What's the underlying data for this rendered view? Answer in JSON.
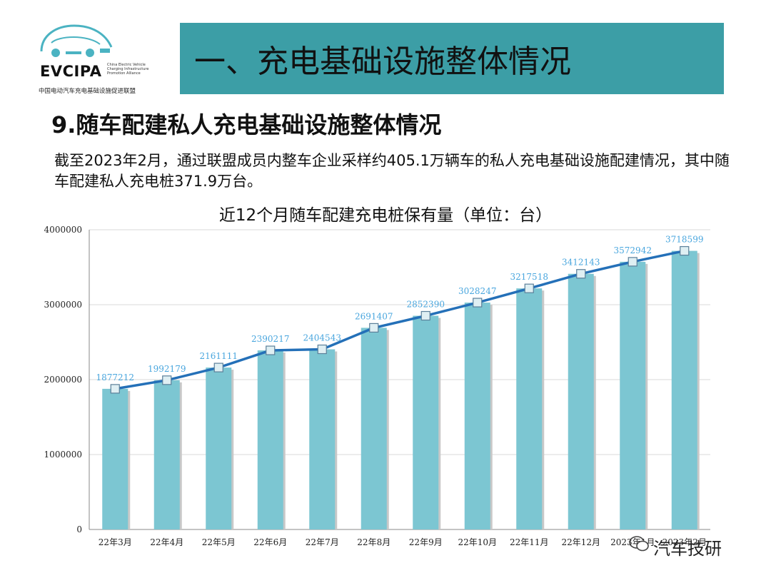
{
  "logo": {
    "brand": "EVCIPA",
    "subtitle_lines": [
      "China Electric Vehicle",
      "Charging Infrastructure",
      "Promotion Alliance"
    ],
    "cn_name": "中国电动汽车充电基础设施促进联盟"
  },
  "header": {
    "title": "一、充电基础设施整体情况"
  },
  "section": {
    "title": "9.随车配建私人充电基础设施整体情况"
  },
  "description": "截至2023年2月，通过联盟成员内整车企业采样约405.1万辆车的私人充电基础设施配建情况，其中随车配建私人充电桩371.9万台。",
  "watermark": "汽车技研",
  "colors": {
    "banner": "#3c9ea6",
    "bar": "#7cc6d2",
    "line": "#2470b8",
    "label": "#49a6de"
  },
  "chart_data": {
    "type": "bar",
    "title": "近12个月随车配建充电桩保有量（单位：台）",
    "categories": [
      "22年3月",
      "22年4月",
      "22年5月",
      "22年6月",
      "22年7月",
      "22年8月",
      "22年9月",
      "22年10月",
      "22年11月",
      "22年12月",
      "2023年1月",
      "2023年2月"
    ],
    "values": [
      1877212,
      1992179,
      2161111,
      2390217,
      2404543,
      2691407,
      2852390,
      3028247,
      3217518,
      3412143,
      3572942,
      3718599
    ],
    "value_labels": [
      "1877212",
      "1992179",
      "2161111",
      "2390217",
      "2404543",
      "2691407",
      "2852390",
      "3028247",
      "3217518",
      "3412143",
      "3572942",
      "3718599"
    ],
    "overlay": "line with square markers",
    "yticks": [
      "4000000",
      "3000000",
      "2000000",
      "1000000",
      "0"
    ],
    "ylim": [
      0,
      4000000
    ],
    "grid": true
  }
}
